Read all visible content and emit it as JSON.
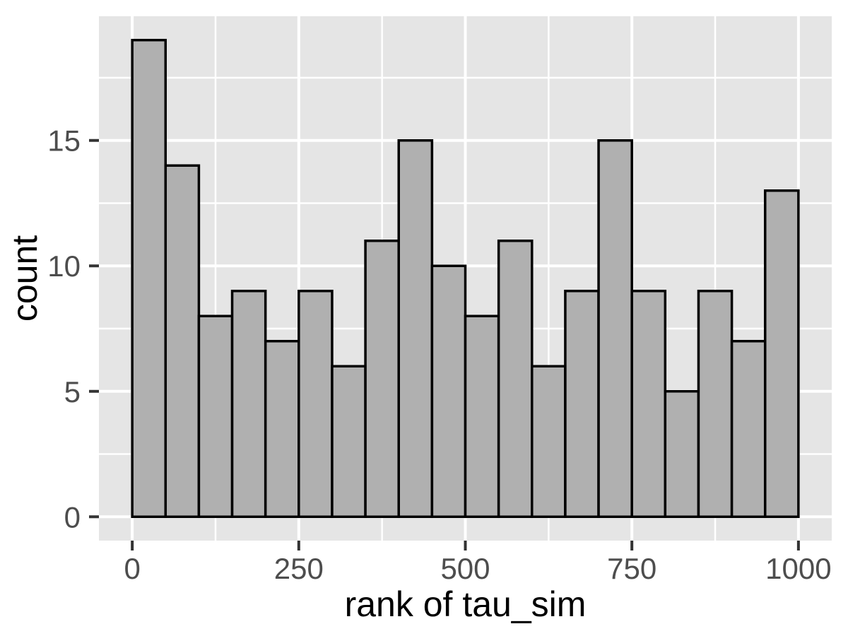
{
  "figure": {
    "background": "#FFFFFF"
  },
  "chart_data": {
    "type": "bar",
    "subtype": "histogram",
    "title": "",
    "xlabel": "rank of tau_sim",
    "ylabel": "count",
    "bin_start": 0,
    "bin_width": 50,
    "bin_edges": [
      0,
      50,
      100,
      150,
      200,
      250,
      300,
      350,
      400,
      450,
      500,
      550,
      600,
      650,
      700,
      750,
      800,
      850,
      900,
      950,
      1000
    ],
    "values": [
      19,
      14,
      8,
      9,
      7,
      9,
      6,
      11,
      15,
      10,
      8,
      11,
      6,
      9,
      15,
      9,
      5,
      9,
      7,
      13
    ],
    "x_ticks": [
      0,
      250,
      500,
      750,
      1000
    ],
    "x_tick_labels": [
      "0",
      "250",
      "500",
      "750",
      "1000"
    ],
    "y_ticks": [
      0,
      5,
      10,
      15
    ],
    "y_tick_labels": [
      "0",
      "5",
      "10",
      "15"
    ],
    "x_minor_gridlines": [
      125,
      375,
      625,
      875
    ],
    "y_minor_gridlines": [
      2.5,
      7.5,
      12.5,
      17.5
    ],
    "xlim": [
      -50,
      1050
    ],
    "ylim": [
      -0.95,
      19.95
    ],
    "grid": "on",
    "legend": "none",
    "colors": {
      "bar_fill": "#B0B0B0",
      "bar_stroke": "#000000",
      "panel_background": "#E5E5E5",
      "gridline": "#FFFFFF",
      "tick_mark": "#333333",
      "tick_label": "#4D4D4D",
      "axis_title": "#000000"
    }
  }
}
